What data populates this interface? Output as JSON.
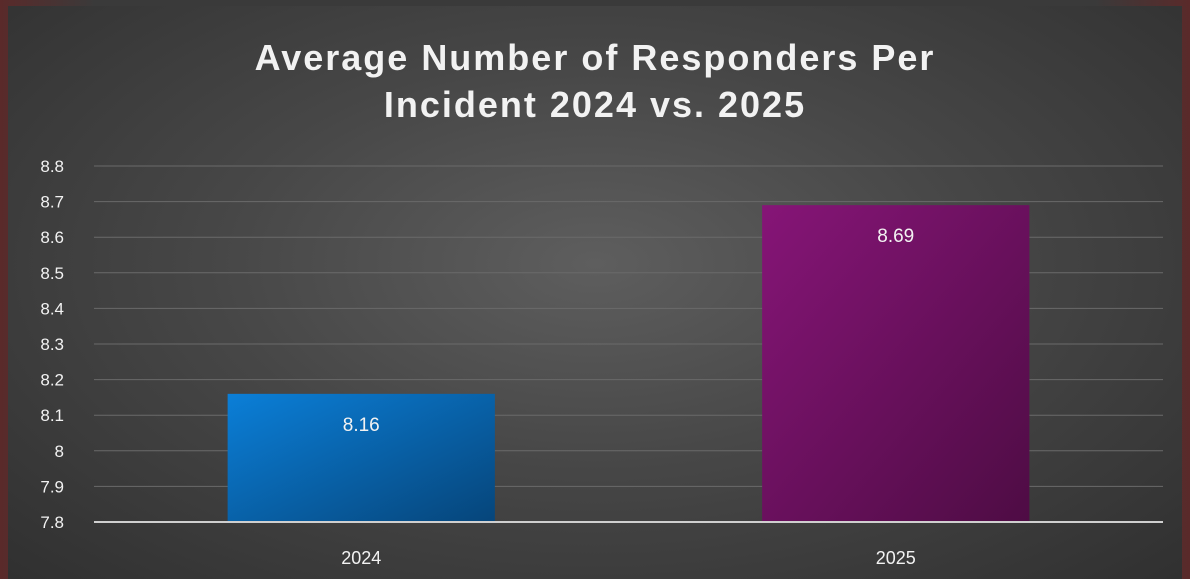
{
  "chart_data": {
    "type": "bar",
    "title_lines": [
      "Average Number of Responders Per",
      "Incident 2024 vs. 2025"
    ],
    "categories": [
      "2024",
      "2025"
    ],
    "series": [
      {
        "values": [
          8.16,
          8.69
        ],
        "colors": [
          "#0a6fc4",
          "#7a1a6e"
        ]
      }
    ],
    "data_labels": [
      "8.16",
      "8.69"
    ],
    "yticks": [
      "8.8",
      "8.7",
      "8.6",
      "8.5",
      "8.4",
      "8.3",
      "8.2",
      "8.1",
      "8",
      "7.9",
      "7.8"
    ],
    "ylim": [
      7.8,
      8.8
    ],
    "ytick_step": 0.1,
    "grid": true,
    "legend": "none",
    "colors": {
      "background": "#474747",
      "text": "#f2f2f2",
      "gridline": "#6a6a6a",
      "axis": "#cfcfcf"
    }
  }
}
